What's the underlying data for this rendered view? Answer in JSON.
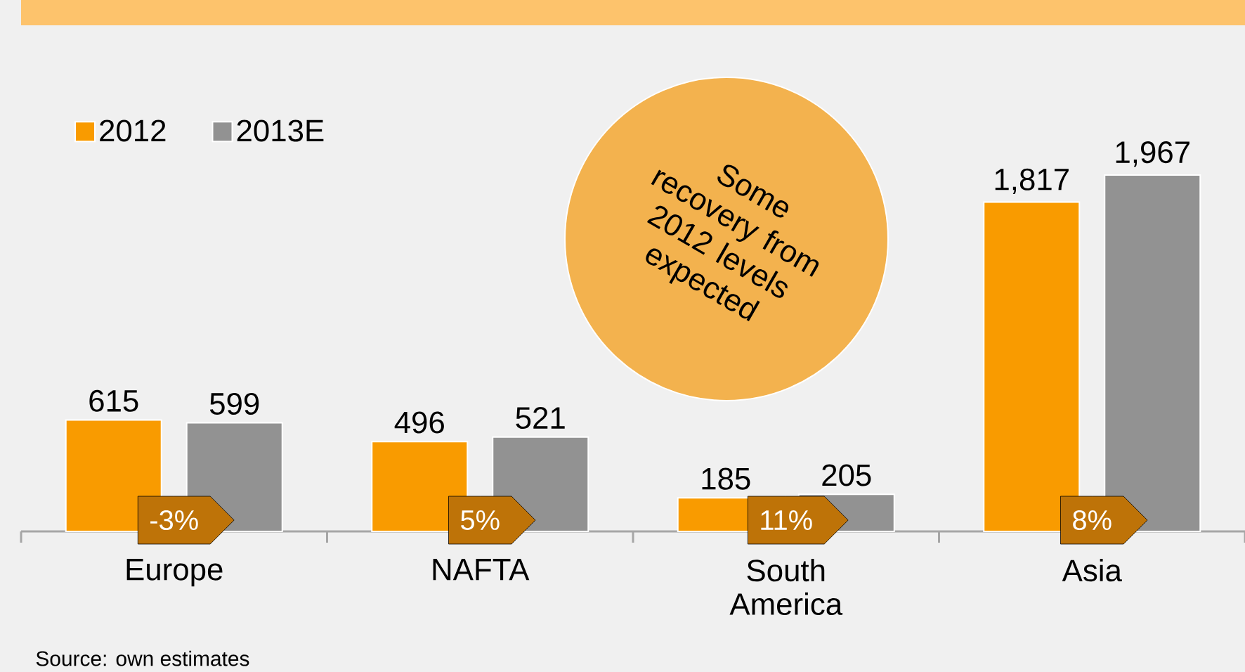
{
  "chart_data": {
    "type": "bar",
    "categories": [
      "Europe",
      "NAFTA",
      "South America",
      "Asia"
    ],
    "series": [
      {
        "name": "2012",
        "color": "#f99b00",
        "values": [
          615,
          496,
          185,
          1817
        ],
        "value_labels": [
          "615",
          "496",
          "185",
          "1,817"
        ]
      },
      {
        "name": "2013E",
        "color": "#929292",
        "values": [
          599,
          521,
          205,
          1967
        ],
        "value_labels": [
          "599",
          "521",
          "205",
          "1,967"
        ]
      }
    ],
    "legend": "top left",
    "annotations": [
      "-3%",
      "5%",
      "11%",
      "8%",
      "Some recovery from 2012 levels expected",
      "Source: own estimates"
    ]
  }
}
